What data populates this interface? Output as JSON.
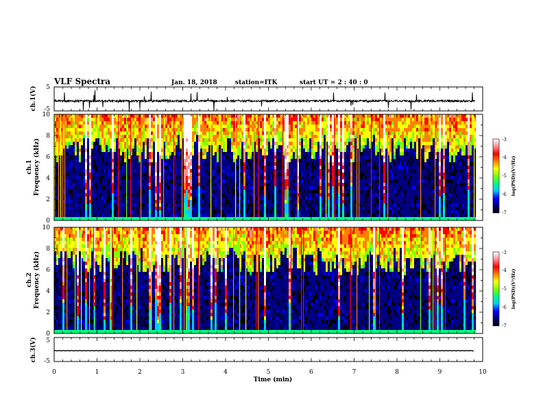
{
  "header": {
    "title": "VLF Spectra",
    "date": "Jan. 18, 2018",
    "station": "station=ITK",
    "start_ut": "start UT =   2 : 40 : 0"
  },
  "colors": {
    "colormap": [
      "#000000",
      "#000080",
      "#0000ff",
      "#00c8ff",
      "#00ff80",
      "#80ff00",
      "#ffff00",
      "#ff8000",
      "#ff0000",
      "#ff9090",
      "#ffffff"
    ],
    "trace": "#000000"
  },
  "chart_data": [
    {
      "type": "line",
      "panel": "ch1-waveform",
      "ylabel": "ch.1(V)",
      "ylim": [
        -5,
        5
      ],
      "yticks": [
        "5",
        "-5"
      ],
      "xlim": [
        0,
        10
      ],
      "baseline": 0,
      "grid": false
    },
    {
      "type": "heatmap",
      "panel": "ch1-spectrogram",
      "ylabel_line1": "ch.1",
      "ylabel_line2": "Frequency (kHz)",
      "ylim": [
        0,
        10
      ],
      "yticks": [
        "0",
        "2",
        "4",
        "6",
        "8",
        "10"
      ],
      "xlim": [
        0,
        9.82
      ],
      "colorbar": {
        "label": "log(PSD)(V²/Hz)",
        "range": [
          -7,
          -3
        ],
        "ticks": [
          "-3",
          "-4",
          "-5",
          "-6",
          "-7"
        ]
      }
    },
    {
      "type": "heatmap",
      "panel": "ch2-spectrogram",
      "ylabel_line1": "ch.2",
      "ylabel_line2": "Frequency (kHz)",
      "ylim": [
        0,
        10
      ],
      "yticks": [
        "0",
        "2",
        "4",
        "6",
        "8",
        "10"
      ],
      "xlim": [
        0,
        9.82
      ],
      "colorbar": {
        "label": "log(PSD)(V²/Hz)",
        "range": [
          -7,
          -3
        ],
        "ticks": [
          "-3",
          "-4",
          "-5",
          "-6",
          "-7"
        ]
      }
    },
    {
      "type": "line",
      "panel": "ch3-waveform",
      "ylabel": "ch.3(V)",
      "ylim": [
        -5,
        5
      ],
      "yticks": [
        "5",
        "-5"
      ],
      "xlim": [
        0,
        10
      ],
      "baseline": 0,
      "grid": false,
      "xlabel": "Time (min)",
      "xticks": [
        "0",
        "1",
        "2",
        "3",
        "4",
        "5",
        "6",
        "7",
        "8",
        "9",
        "10"
      ]
    }
  ]
}
